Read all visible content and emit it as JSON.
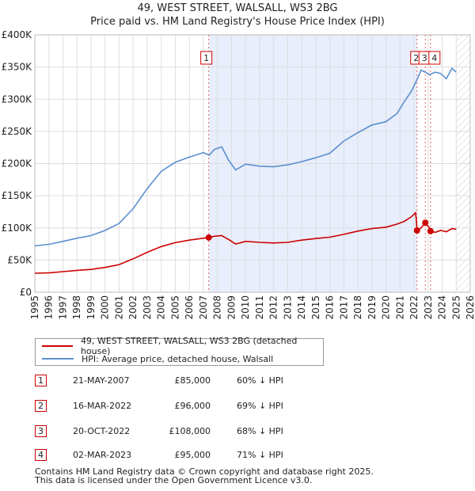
{
  "chart_data": {
    "type": "line",
    "title": "49, WEST STREET, WALSALL, WS3 2BG",
    "subtitle": "Price paid vs. HM Land Registry's House Price Index (HPI)",
    "xlabel": "",
    "ylabel": "",
    "xlim": [
      1995,
      2026
    ],
    "ylim": [
      0,
      400000
    ],
    "x_ticks": [
      "1995",
      "1996",
      "1997",
      "1998",
      "1999",
      "2000",
      "2001",
      "2002",
      "2003",
      "2004",
      "2005",
      "2006",
      "2007",
      "2008",
      "2009",
      "2010",
      "2011",
      "2012",
      "2013",
      "2014",
      "2015",
      "2016",
      "2017",
      "2018",
      "2019",
      "2020",
      "2021",
      "2022",
      "2023",
      "2024",
      "2025",
      "2026"
    ],
    "y_ticks": [
      {
        "value": 0,
        "label": "£0"
      },
      {
        "value": 50000,
        "label": "£50K"
      },
      {
        "value": 100000,
        "label": "£100K"
      },
      {
        "value": 150000,
        "label": "£150K"
      },
      {
        "value": 200000,
        "label": "£200K"
      },
      {
        "value": 250000,
        "label": "£250K"
      },
      {
        "value": 300000,
        "label": "£300K"
      },
      {
        "value": 350000,
        "label": "£350K"
      },
      {
        "value": 400000,
        "label": "£400K"
      }
    ],
    "grid": true,
    "series": [
      {
        "name": "49, WEST STREET, WALSALL, WS3 2BG (detached house)",
        "color": "#cc0000",
        "points": [
          [
            1995.0,
            29500
          ],
          [
            1996.0,
            30000
          ],
          [
            1997.0,
            32000
          ],
          [
            1998.0,
            34000
          ],
          [
            1999.0,
            35500
          ],
          [
            2000.0,
            38500
          ],
          [
            2001.0,
            43000
          ],
          [
            2002.0,
            52000
          ],
          [
            2003.0,
            62000
          ],
          [
            2004.0,
            71000
          ],
          [
            2005.0,
            77000
          ],
          [
            2006.0,
            81000
          ],
          [
            2007.0,
            84000
          ],
          [
            2007.38,
            85000
          ],
          [
            2007.8,
            87000
          ],
          [
            2008.3,
            88000
          ],
          [
            2008.8,
            82000
          ],
          [
            2009.3,
            75000
          ],
          [
            2010.0,
            79000
          ],
          [
            2011.0,
            77500
          ],
          [
            2012.0,
            76500
          ],
          [
            2013.0,
            77500
          ],
          [
            2014.0,
            81000
          ],
          [
            2015.0,
            83500
          ],
          [
            2016.0,
            85500
          ],
          [
            2017.0,
            90000
          ],
          [
            2018.0,
            95000
          ],
          [
            2019.0,
            99000
          ],
          [
            2020.0,
            101000
          ],
          [
            2020.8,
            106000
          ],
          [
            2021.3,
            110000
          ],
          [
            2021.8,
            117000
          ],
          [
            2022.1,
            123500
          ],
          [
            2022.15,
            115000
          ],
          [
            2022.21,
            96000
          ],
          [
            2022.5,
            100000
          ],
          [
            2022.8,
            108000
          ],
          [
            2022.9,
            105000
          ],
          [
            2023.1,
            100000
          ],
          [
            2023.17,
            95000
          ],
          [
            2023.5,
            93000
          ],
          [
            2023.9,
            96000
          ],
          [
            2024.3,
            94000
          ],
          [
            2024.7,
            99000
          ],
          [
            2025.0,
            98000
          ]
        ]
      },
      {
        "name": "HPI: Average price, detached house, Walsall",
        "color": "#5b8fd0",
        "points": [
          [
            1995.0,
            72000
          ],
          [
            1996.0,
            74500
          ],
          [
            1997.0,
            79000
          ],
          [
            1998.0,
            84000
          ],
          [
            1999.0,
            88000
          ],
          [
            2000.0,
            96000
          ],
          [
            2001.0,
            107000
          ],
          [
            2002.0,
            130000
          ],
          [
            2003.0,
            161000
          ],
          [
            2004.0,
            188000
          ],
          [
            2005.0,
            202000
          ],
          [
            2006.0,
            210000
          ],
          [
            2007.0,
            217000
          ],
          [
            2007.4,
            213000
          ],
          [
            2007.8,
            222000
          ],
          [
            2008.3,
            226000
          ],
          [
            2008.8,
            205000
          ],
          [
            2009.3,
            190000
          ],
          [
            2010.0,
            199000
          ],
          [
            2011.0,
            196000
          ],
          [
            2012.0,
            195000
          ],
          [
            2013.0,
            198000
          ],
          [
            2014.0,
            203000
          ],
          [
            2015.0,
            209000
          ],
          [
            2016.0,
            216000
          ],
          [
            2017.0,
            235000
          ],
          [
            2018.0,
            248000
          ],
          [
            2019.0,
            260000
          ],
          [
            2020.0,
            265000
          ],
          [
            2020.8,
            278000
          ],
          [
            2021.3,
            296000
          ],
          [
            2021.8,
            312000
          ],
          [
            2022.2,
            330000
          ],
          [
            2022.5,
            345000
          ],
          [
            2022.8,
            342000
          ],
          [
            2023.1,
            338000
          ],
          [
            2023.5,
            342000
          ],
          [
            2023.9,
            340000
          ],
          [
            2024.3,
            332000
          ],
          [
            2024.7,
            348000
          ],
          [
            2025.0,
            342000
          ]
        ]
      }
    ],
    "sales": [
      {
        "label": "1",
        "x": 2007.38,
        "price": 85000
      },
      {
        "label": "2",
        "x": 2022.21,
        "price": 96000
      },
      {
        "label": "3",
        "x": 2022.8,
        "price": 108000
      },
      {
        "label": "4",
        "x": 2023.17,
        "price": 95000
      }
    ],
    "shaded_period": [
      2007.38,
      2022.21
    ],
    "forecast_from": 2025.0,
    "colors": {
      "price": "#cc0000",
      "hpi": "#5b8fd0",
      "shade": "#e8eefb",
      "grid": "#dddddd"
    }
  },
  "legend": {
    "price_label": "49, WEST STREET, WALSALL, WS3 2BG (detached house)",
    "hpi_label": "HPI: Average price, detached house, Walsall"
  },
  "transactions": [
    {
      "num": "1",
      "date": "21-MAY-2007",
      "price": "£85,000",
      "hpi": "60% ↓ HPI"
    },
    {
      "num": "2",
      "date": "16-MAR-2022",
      "price": "£96,000",
      "hpi": "69% ↓ HPI"
    },
    {
      "num": "3",
      "date": "20-OCT-2022",
      "price": "£108,000",
      "hpi": "68% ↓ HPI"
    },
    {
      "num": "4",
      "date": "02-MAR-2023",
      "price": "£95,000",
      "hpi": "71% ↓ HPI"
    }
  ],
  "footer": {
    "line1": "Contains HM Land Registry data © Crown copyright and database right 2025.",
    "line2": "This data is licensed under the Open Government Licence v3.0."
  }
}
